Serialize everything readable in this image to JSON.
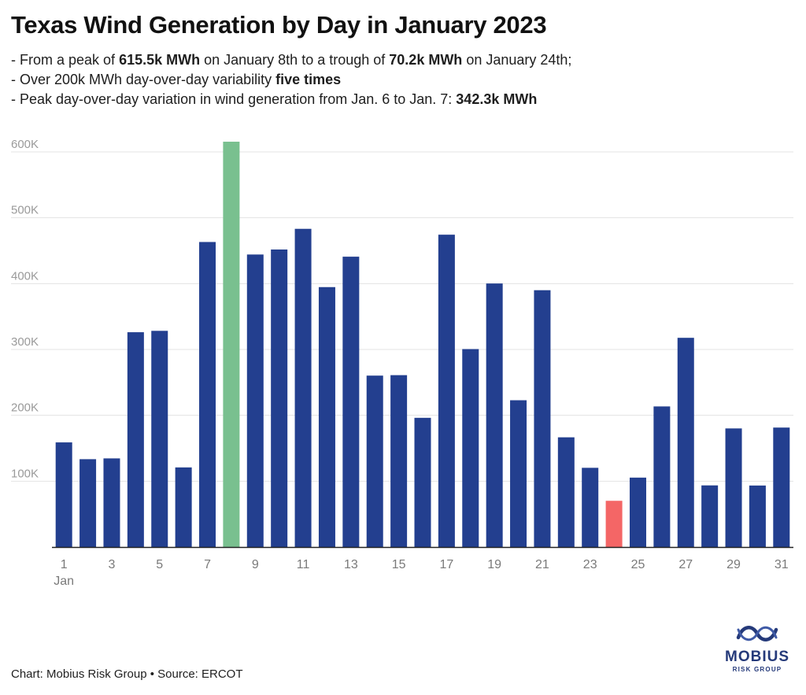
{
  "title": "Texas Wind Generation by Day in January 2023",
  "notes": {
    "line1": {
      "pre": "- From a peak of ",
      "b1": "615.5k MWh",
      "mid": " on January 8th to a trough of ",
      "b2": "70.2k MWh",
      "post": " on January 24th;"
    },
    "line2": {
      "pre": "- Over 200k MWh day-over-day variability ",
      "b1": "five times"
    },
    "line3": {
      "pre": "- Peak day-over-day variation in wind generation from Jan. 6 to Jan. 7: ",
      "b1": "342.3k MWh"
    }
  },
  "colors": {
    "bar": "#233f8f",
    "peak": "#79c08f",
    "trough": "#f46666",
    "grid": "#e3e3e3",
    "axis": "#222222"
  },
  "chart_data": {
    "type": "bar",
    "title": "Texas Wind Generation by Day in January 2023",
    "xlabel": "",
    "ylabel": "",
    "categories": [
      "1",
      "2",
      "3",
      "4",
      "5",
      "6",
      "7",
      "8",
      "9",
      "10",
      "11",
      "12",
      "13",
      "14",
      "15",
      "16",
      "17",
      "18",
      "19",
      "20",
      "21",
      "22",
      "23",
      "24",
      "25",
      "26",
      "27",
      "28",
      "29",
      "30",
      "31"
    ],
    "values": [
      158.9,
      133.4,
      134.6,
      326.2,
      328.3,
      120.9,
      463.2,
      615.5,
      444.2,
      451.8,
      483.2,
      394.7,
      440.9,
      260.3,
      261.0,
      196.2,
      474.3,
      300.6,
      400.2,
      222.9,
      390.0,
      166.6,
      120.3,
      70.2,
      105.4,
      213.5,
      317.7,
      93.6,
      180.1,
      93.4,
      181.4
    ],
    "unit": "k MWh",
    "ylim": [
      0,
      640
    ],
    "yticks": [
      100,
      200,
      300,
      400,
      500,
      600
    ],
    "ytick_labels": [
      "100K",
      "200K",
      "300K",
      "400K",
      "500K",
      "600K"
    ],
    "xtick_labels": [
      "1",
      "3",
      "5",
      "7",
      "9",
      "11",
      "13",
      "15",
      "17",
      "19",
      "21",
      "23",
      "25",
      "27",
      "29",
      "31"
    ],
    "x_sublabel": "Jan",
    "highlights": {
      "peak": "8",
      "trough": "24"
    },
    "grid": true
  },
  "source": "Chart: Mobius Risk Group • Source: ERCOT",
  "logo": {
    "word": "MOBIUS",
    "sub": "RISK GROUP",
    "icon": "mobius-strip-icon"
  }
}
